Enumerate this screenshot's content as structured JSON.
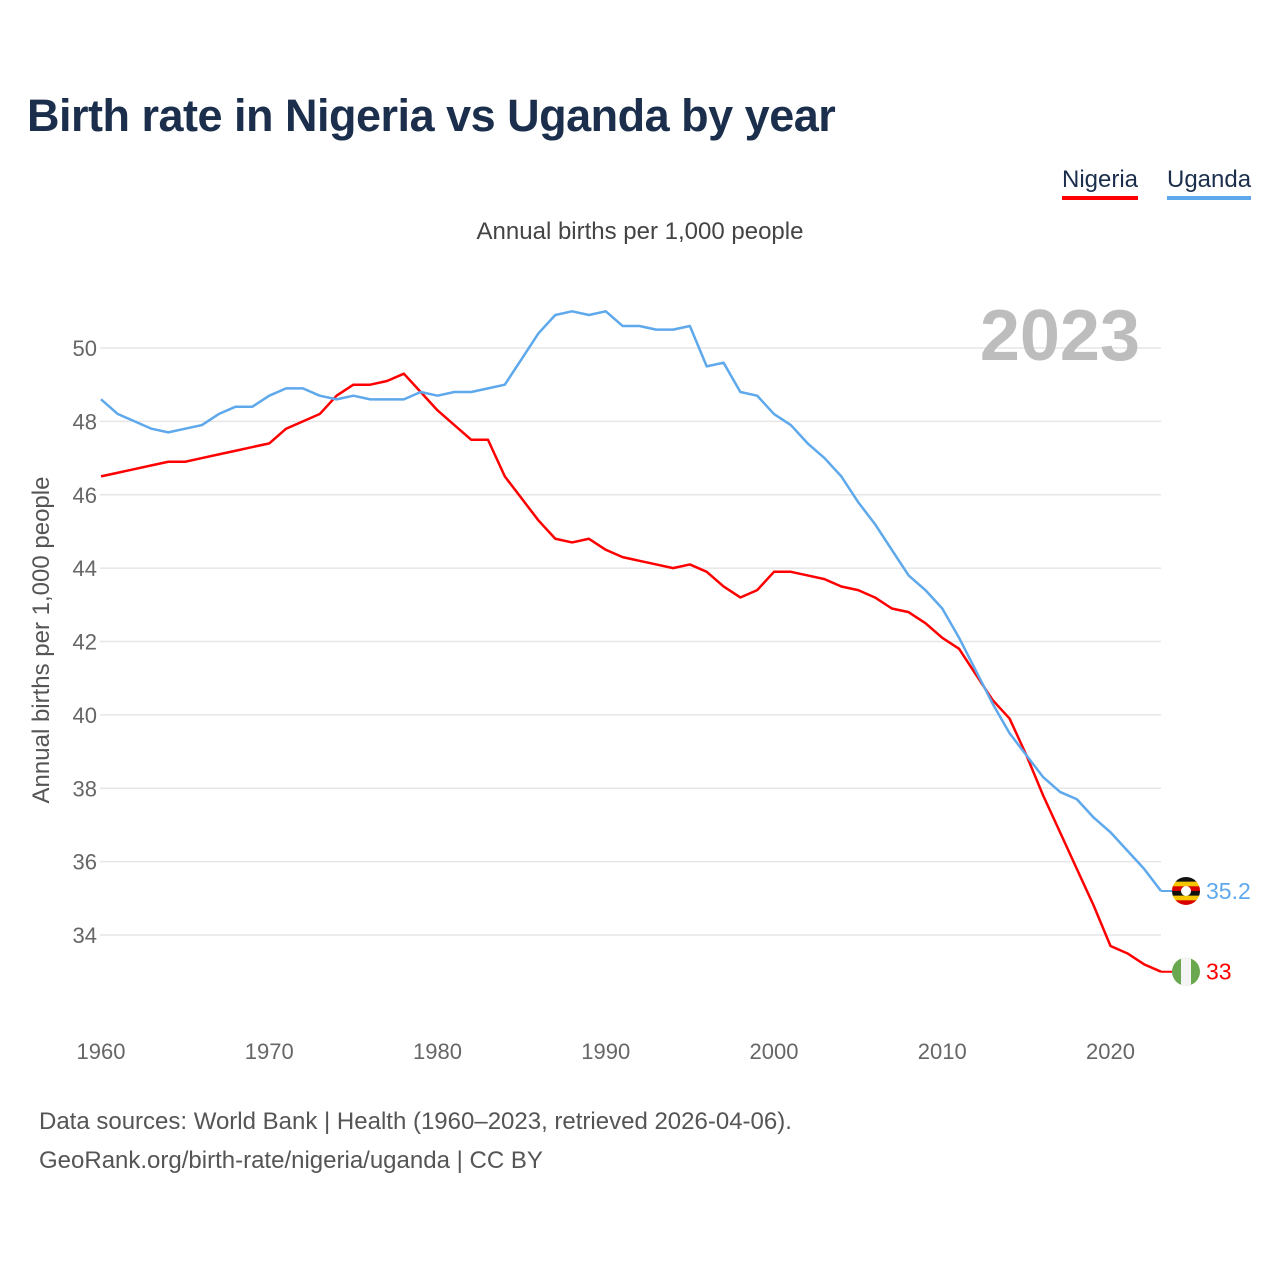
{
  "title": "Birth rate in Nigeria vs Uganda by year",
  "legend": {
    "nigeria": "Nigeria",
    "uganda": "Uganda"
  },
  "footer": {
    "line1": "Data sources: World Bank | Health (1960–2023, retrieved 2026-04-06).",
    "line2": "GeoRank.org/birth-rate/nigeria/uganda | CC BY"
  },
  "colors": {
    "nigeria": "#ff0000",
    "uganda": "#5ea8ec"
  },
  "chart_data": {
    "type": "line",
    "title": "Birth rate in Nigeria vs Uganda by year",
    "subtitle": "Annual births per 1,000 people",
    "ylabel": "Annual births per 1,000 people",
    "xlabel": "",
    "year_label": "2023",
    "xlim": [
      1960,
      2023
    ],
    "ylim": [
      32,
      51.5
    ],
    "xticks": [
      1960,
      1970,
      1980,
      1990,
      2000,
      2010,
      2020
    ],
    "yticks": [
      34,
      36,
      38,
      40,
      42,
      44,
      46,
      48,
      50
    ],
    "grid": true,
    "legend_position": "top-right",
    "x_start": 1960,
    "series": [
      {
        "name": "Nigeria",
        "end_label": "33",
        "values": [
          46.5,
          46.6,
          46.7,
          46.8,
          46.9,
          46.9,
          47.0,
          47.1,
          47.2,
          47.3,
          47.4,
          47.8,
          48.0,
          48.2,
          48.7,
          49.0,
          49.0,
          49.1,
          49.3,
          48.8,
          48.3,
          47.9,
          47.5,
          47.5,
          46.5,
          45.9,
          45.3,
          44.8,
          44.7,
          44.8,
          44.5,
          44.3,
          44.2,
          44.1,
          44.0,
          44.1,
          43.9,
          43.5,
          43.2,
          43.4,
          43.9,
          43.9,
          43.8,
          43.7,
          43.5,
          43.4,
          43.2,
          42.9,
          42.8,
          42.5,
          42.1,
          41.8,
          41.1,
          40.4,
          39.9,
          38.9,
          37.8,
          36.8,
          35.8,
          34.8,
          33.7,
          33.5,
          33.2,
          33.0
        ]
      },
      {
        "name": "Uganda",
        "end_label": "35.2",
        "values": [
          48.6,
          48.2,
          48.0,
          47.8,
          47.7,
          47.8,
          47.9,
          48.2,
          48.4,
          48.4,
          48.7,
          48.9,
          48.9,
          48.7,
          48.6,
          48.7,
          48.6,
          48.6,
          48.6,
          48.8,
          48.7,
          48.8,
          48.8,
          48.9,
          49.0,
          49.7,
          50.4,
          50.9,
          51.0,
          50.9,
          51.0,
          50.6,
          50.6,
          50.5,
          50.5,
          50.6,
          49.5,
          49.6,
          48.8,
          48.7,
          48.2,
          47.9,
          47.4,
          47.0,
          46.5,
          45.8,
          45.2,
          44.5,
          43.8,
          43.4,
          42.9,
          42.1,
          41.2,
          40.3,
          39.5,
          38.9,
          38.3,
          37.9,
          37.7,
          37.2,
          36.8,
          36.3,
          35.8,
          35.2
        ]
      }
    ]
  }
}
